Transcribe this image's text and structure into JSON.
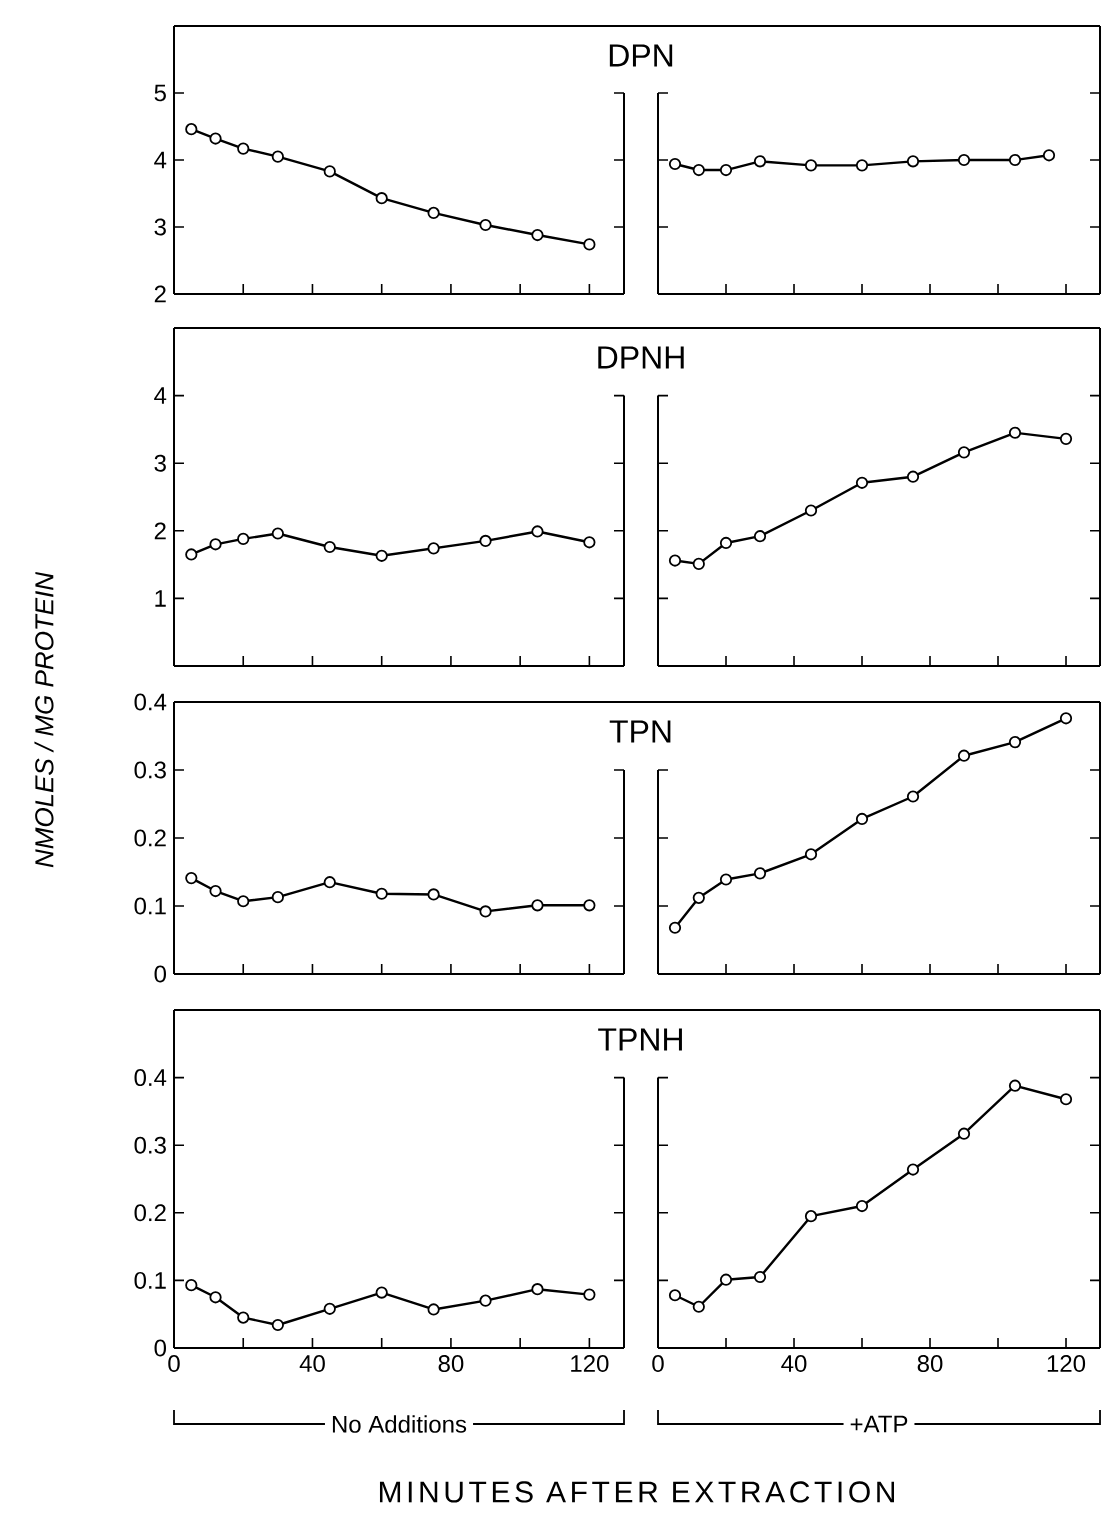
{
  "chart_data": [
    {
      "type": "line",
      "title": "DPN",
      "color": "#000000",
      "marker": "circle",
      "line_style": "solid",
      "tick_labels": "y",
      "x": [
        5,
        12,
        20,
        30,
        45,
        60,
        75,
        90,
        105,
        120
      ],
      "values": [
        4.46,
        4.32,
        4.17,
        4.05,
        3.83,
        3.43,
        3.21,
        3.03,
        2.88,
        2.74
      ],
      "xlim": [
        0,
        130
      ],
      "ylim": [
        2,
        6
      ],
      "xticks": [
        0,
        {
          "value": 20,
          "label": null
        },
        40,
        {
          "value": 60,
          "label": null
        },
        80,
        {
          "value": 100,
          "label": null
        },
        120
      ],
      "yticks": [
        2,
        3,
        4,
        5
      ]
    },
    {
      "type": "line",
      "color": "#000000",
      "marker": "circle",
      "line_style": "solid",
      "tick_labels": false,
      "x": [
        5,
        12,
        20,
        30,
        45,
        60,
        75,
        90,
        105,
        115
      ],
      "values": [
        3.94,
        3.85,
        3.85,
        3.98,
        3.92,
        3.92,
        3.98,
        4.0,
        4.0,
        4.07
      ],
      "xlim": [
        0,
        130
      ],
      "ylim": [
        2,
        6
      ],
      "xticks": [
        0,
        {
          "value": 20,
          "label": null
        },
        40,
        {
          "value": 60,
          "label": null
        },
        80,
        {
          "value": 100,
          "label": null
        },
        120
      ],
      "yticks": [
        2,
        3,
        4,
        5
      ]
    },
    {
      "type": "line",
      "title": "DPNH",
      "color": "#000000",
      "marker": "circle",
      "line_style": "solid",
      "tick_labels": "y",
      "x": [
        5,
        12,
        20,
        30,
        45,
        60,
        75,
        90,
        105,
        120
      ],
      "values": [
        1.65,
        1.8,
        1.88,
        1.96,
        1.76,
        1.63,
        1.74,
        1.85,
        1.99,
        1.83
      ],
      "xlim": [
        0,
        130
      ],
      "ylim": [
        0,
        5
      ],
      "xticks": [
        0,
        {
          "value": 20,
          "label": null
        },
        40,
        {
          "value": 60,
          "label": null
        },
        80,
        {
          "value": 100,
          "label": null
        },
        120
      ],
      "yticks": [
        {
          "value": 0,
          "label": null
        },
        1,
        2,
        3,
        4
      ]
    },
    {
      "type": "line",
      "color": "#000000",
      "marker": "circle",
      "line_style": "solid",
      "tick_labels": false,
      "x": [
        5,
        12,
        20,
        30,
        45,
        60,
        75,
        90,
        105,
        120
      ],
      "values": [
        1.56,
        1.51,
        1.82,
        1.92,
        2.3,
        2.71,
        2.8,
        3.16,
        3.45,
        3.36
      ],
      "xlim": [
        0,
        130
      ],
      "ylim": [
        0,
        5
      ],
      "xticks": [
        0,
        {
          "value": 20,
          "label": null
        },
        40,
        {
          "value": 60,
          "label": null
        },
        80,
        {
          "value": 100,
          "label": null
        },
        120
      ],
      "yticks": [
        {
          "value": 0,
          "label": null
        },
        1,
        2,
        3,
        4
      ]
    },
    {
      "type": "line",
      "title": "TPN",
      "ylabel": "NMOLES / MG PROTEIN",
      "color": "#000000",
      "marker": "circle",
      "line_style": "solid",
      "tick_labels": "y",
      "x": [
        5,
        12,
        20,
        30,
        45,
        60,
        75,
        90,
        105,
        120
      ],
      "values": [
        0.141,
        0.122,
        0.107,
        0.113,
        0.135,
        0.118,
        0.117,
        0.092,
        0.101,
        0.101
      ],
      "xlim": [
        0,
        130
      ],
      "ylim": [
        0,
        0.4
      ],
      "xticks": [
        0,
        {
          "value": 20,
          "label": null
        },
        40,
        {
          "value": 60,
          "label": null
        },
        80,
        {
          "value": 100,
          "label": null
        },
        120
      ],
      "yticks": [
        0,
        0.1,
        0.2,
        0.3,
        0.4
      ]
    },
    {
      "type": "line",
      "color": "#000000",
      "marker": "circle",
      "line_style": "solid",
      "tick_labels": false,
      "x": [
        5,
        12,
        20,
        30,
        45,
        60,
        75,
        90,
        105,
        120
      ],
      "values": [
        0.068,
        0.112,
        0.139,
        0.148,
        0.176,
        0.228,
        0.261,
        0.321,
        0.341,
        0.376
      ],
      "xlim": [
        0,
        130
      ],
      "ylim": [
        0,
        0.4
      ],
      "xticks": [
        0,
        {
          "value": 20,
          "label": null
        },
        40,
        {
          "value": 60,
          "label": null
        },
        80,
        {
          "value": 100,
          "label": null
        },
        120
      ],
      "yticks": [
        0,
        0.1,
        0.2,
        0.3,
        0.4
      ]
    },
    {
      "type": "line",
      "title": "TPNH",
      "xlabel": "No Additions",
      "annotations": [
        "MINUTES AFTER EXTRACTION"
      ],
      "color": "#000000",
      "marker": "circle",
      "line_style": "solid",
      "x": [
        5,
        12,
        20,
        30,
        45,
        60,
        75,
        90,
        105,
        120
      ],
      "values": [
        0.093,
        0.075,
        0.045,
        0.034,
        0.058,
        0.082,
        0.057,
        0.07,
        0.087,
        0.079
      ],
      "xlim": [
        0,
        130
      ],
      "ylim": [
        0,
        0.5
      ],
      "xticks": [
        0,
        {
          "value": 20,
          "label": null
        },
        40,
        {
          "value": 60,
          "label": null
        },
        80,
        {
          "value": 100,
          "label": null
        },
        120
      ],
      "yticks": [
        0,
        0.1,
        0.2,
        0.3,
        0.4
      ]
    },
    {
      "type": "line",
      "xlabel": "+ATP",
      "color": "#000000",
      "marker": "circle",
      "line_style": "solid",
      "tick_labels": "x",
      "x": [
        5,
        12,
        20,
        30,
        45,
        60,
        75,
        90,
        105,
        120
      ],
      "values": [
        0.078,
        0.061,
        0.101,
        0.105,
        0.195,
        0.21,
        0.264,
        0.317,
        0.388,
        0.368
      ],
      "xlim": [
        0,
        130
      ],
      "ylim": [
        0,
        0.5
      ],
      "xticks": [
        0,
        {
          "value": 20,
          "label": null
        },
        40,
        {
          "value": 60,
          "label": null
        },
        80,
        {
          "value": 100,
          "label": null
        },
        120
      ],
      "yticks": [
        0,
        0.1,
        0.2,
        0.3,
        0.4
      ]
    }
  ]
}
